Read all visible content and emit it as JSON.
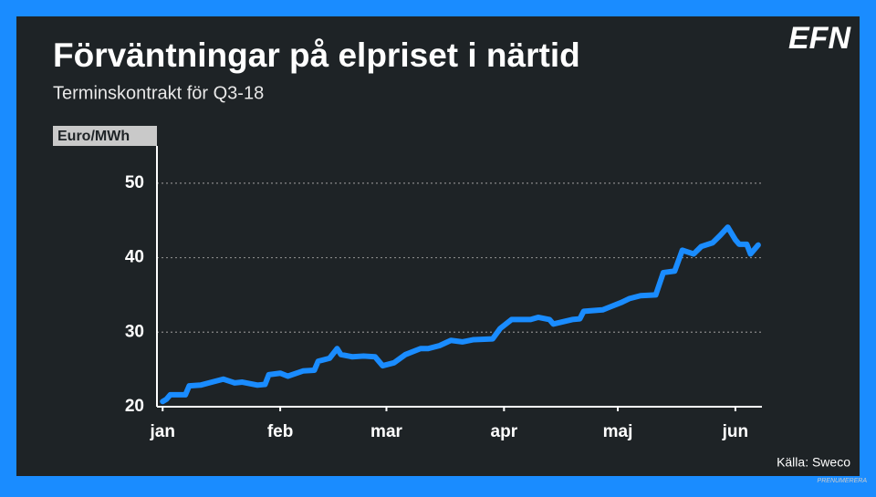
{
  "logo": "EFN",
  "source": "Källa: Sweco",
  "footer": "PRENUMERERA",
  "chart_data": {
    "type": "line",
    "title": "Förväntningar på elpriset i närtid",
    "subtitle": "Terminskontrakt för Q3-18",
    "y_label": "Euro/MWh",
    "x": [
      0,
      1,
      2,
      6,
      7,
      10,
      13,
      16,
      19,
      21,
      25,
      27,
      28,
      31,
      33,
      37,
      40,
      41,
      44,
      46,
      47,
      50,
      53,
      56,
      58,
      61,
      64,
      68,
      70,
      73,
      76,
      79,
      82,
      87,
      89,
      92,
      97,
      99,
      102,
      103,
      108,
      110,
      111,
      116,
      118,
      121,
      123,
      126,
      130,
      132,
      135,
      137,
      140,
      142,
      145,
      147,
      149,
      151,
      152,
      154,
      155,
      157
    ],
    "series": [
      {
        "name": "Q3-18",
        "color": "#1a8cff",
        "values": [
          20.7,
          21,
          21.6,
          21.6,
          22.8,
          22.9,
          23.3,
          23.7,
          23.2,
          23.3,
          22.9,
          23,
          24.3,
          24.5,
          24.1,
          24.8,
          24.9,
          26.1,
          26.5,
          27.8,
          27,
          26.7,
          26.8,
          26.7,
          25.5,
          25.9,
          27,
          27.8,
          27.8,
          28.2,
          28.9,
          28.7,
          29,
          29.1,
          30.5,
          31.7,
          31.7,
          32,
          31.7,
          31.1,
          31.7,
          31.8,
          32.8,
          33,
          33.4,
          34,
          34.5,
          34.9,
          35,
          38,
          38.2,
          41,
          40.5,
          41.5,
          42,
          43,
          44.1,
          42.4,
          41.8,
          41.8,
          40.5,
          41.7
        ]
      }
    ],
    "xlim": [
      -1.5,
      158
    ],
    "xticks": [
      {
        "value": 0,
        "label": "jan"
      },
      {
        "value": 31,
        "label": "feb"
      },
      {
        "value": 59,
        "label": "mar"
      },
      {
        "value": 90,
        "label": "apr"
      },
      {
        "value": 120,
        "label": "maj"
      },
      {
        "value": 151,
        "label": "jun"
      }
    ],
    "ylim": [
      20,
      55
    ],
    "yticks": [
      20,
      30,
      40,
      50
    ],
    "grid": true
  }
}
